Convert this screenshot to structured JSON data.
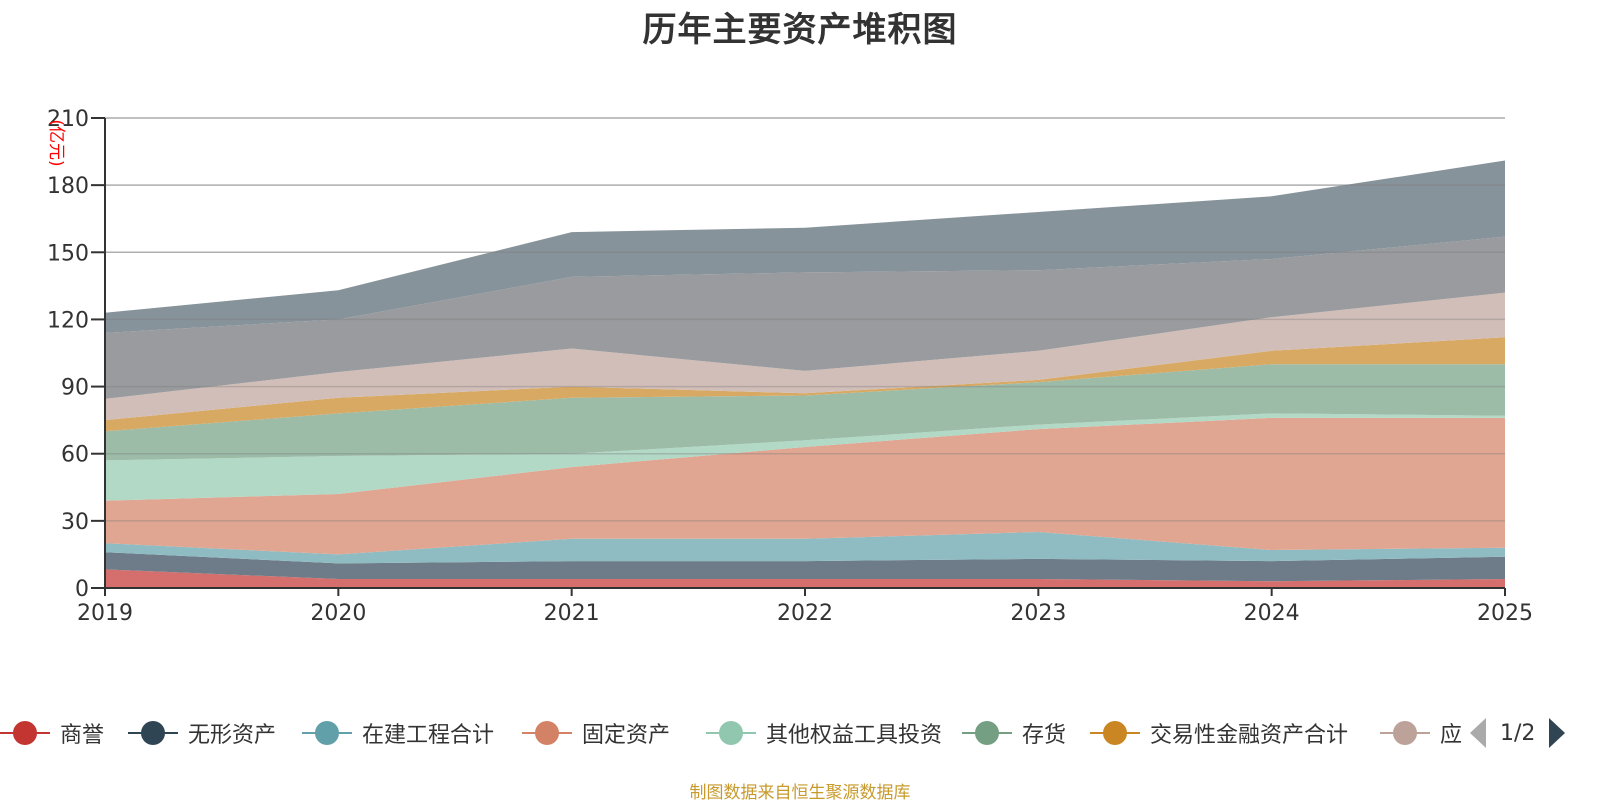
{
  "title": "历年主要资产堆积图",
  "source_note": "制图数据来自恒生聚源数据库",
  "legend_pager": {
    "text": "1/2"
  },
  "chart_data": {
    "type": "area",
    "stacked": true,
    "title": "历年主要资产堆积图",
    "xlabel": "",
    "ylabel": "(亿元)",
    "categories": [
      "2019",
      "2020",
      "2021",
      "2022",
      "2023",
      "2024",
      "2025"
    ],
    "ylim": [
      0,
      210
    ],
    "yticks": [
      "0",
      "30",
      "60",
      "90",
      "120",
      "150",
      "180",
      "210"
    ],
    "grid": true,
    "legend_position": "bottom",
    "series": [
      {
        "name": "商誉",
        "color": "#c23531",
        "fill": "#d46f6d",
        "values": [
          8.3,
          4.0,
          4.0,
          4.0,
          4.0,
          3.0,
          4.0
        ]
      },
      {
        "name": "无形资产",
        "color": "#2f4554",
        "fill": "#6d7c88",
        "values": [
          7.7,
          7.0,
          8.0,
          8.0,
          9.0,
          9.0,
          10.0
        ]
      },
      {
        "name": "在建工程合计",
        "color": "#61a0a8",
        "fill": "#8fbcc2",
        "values": [
          4.0,
          4.0,
          10.0,
          10.0,
          12.0,
          5.0,
          4.0
        ]
      },
      {
        "name": "固定资产",
        "color": "#d48265",
        "fill": "#e0a692",
        "values": [
          19.0,
          27.0,
          32.0,
          41.0,
          46.0,
          59.0,
          58.0
        ]
      },
      {
        "name": "其他权益工具投资",
        "color": "#91c7ae",
        "fill": "#b2d8c6",
        "values": [
          18.0,
          17.0,
          6.0,
          3.0,
          2.0,
          2.0,
          1.0
        ]
      },
      {
        "name": "存货",
        "color": "#749f83",
        "fill": "#9dbca8",
        "values": [
          13.0,
          19.0,
          25.0,
          20.0,
          19.0,
          22.0,
          23.0
        ]
      },
      {
        "name": "交易性金融资产合计",
        "color": "#ca8622",
        "fill": "#d8a962",
        "values": [
          5.0,
          7.0,
          5.0,
          1.0,
          1.0,
          6.0,
          12.0
        ]
      },
      {
        "name": "应",
        "color": "#bda29a",
        "fill": "#d1beb8",
        "values": [
          9.5,
          11.5,
          17.0,
          10.0,
          13.0,
          15.0,
          20.0
        ]
      },
      {
        "name": "",
        "color": "#6e7074",
        "fill": "#9a9b9e",
        "values": [
          29.5,
          23.5,
          32.0,
          44.0,
          36.0,
          26.0,
          25.0
        ]
      },
      {
        "name": "",
        "color": "#546570",
        "fill": "#87939a",
        "values": [
          9.0,
          13.0,
          20.0,
          20.0,
          26.0,
          28.0,
          34.0
        ]
      }
    ]
  }
}
